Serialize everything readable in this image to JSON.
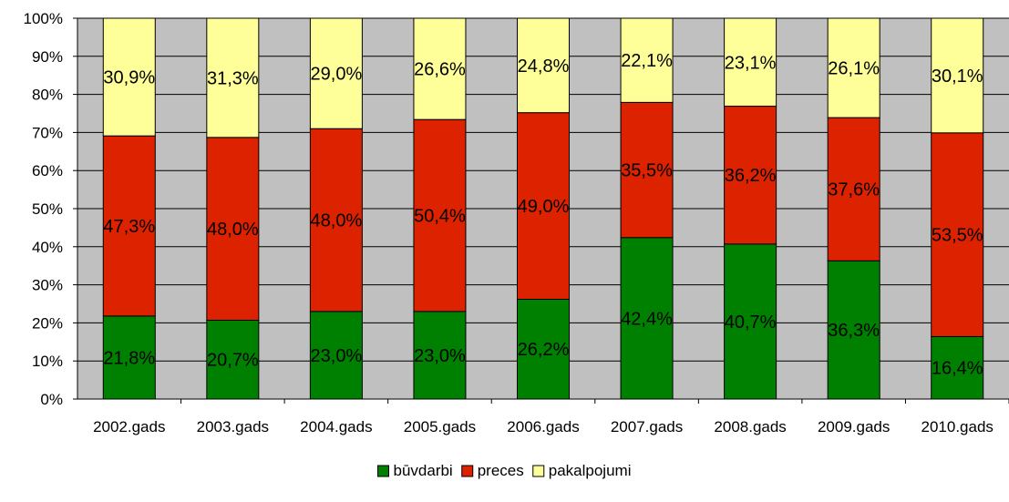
{
  "chart_data": {
    "type": "bar",
    "stacked": true,
    "categories": [
      "2002.gads",
      "2003.gads",
      "2004.gads",
      "2005.gads",
      "2006.gads",
      "2007.gads",
      "2008.gads",
      "2009.gads",
      "2010.gads"
    ],
    "series": [
      {
        "name": "būvdarbi",
        "color": "#008000",
        "values": [
          21.8,
          20.7,
          23.0,
          23.0,
          26.2,
          42.4,
          40.7,
          36.3,
          16.4
        ],
        "labels": [
          "21,8%",
          "20,7%",
          "23,0%",
          "23,0%",
          "26,2%",
          "42,4%",
          "40,7%",
          "36,3%",
          "16,4%"
        ]
      },
      {
        "name": "preces",
        "color": "#dd2200",
        "values": [
          47.3,
          48.0,
          48.0,
          50.4,
          49.0,
          35.5,
          36.2,
          37.6,
          53.5
        ],
        "labels": [
          "47,3%",
          "48,0%",
          "48,0%",
          "50,4%",
          "49,0%",
          "35,5%",
          "36,2%",
          "37,6%",
          "53,5%"
        ]
      },
      {
        "name": "pakalpojumi",
        "color": "#ffff99",
        "values": [
          30.9,
          31.3,
          29.0,
          26.6,
          24.8,
          22.1,
          23.1,
          26.1,
          30.1
        ],
        "labels": [
          "30,9%",
          "31,3%",
          "29,0%",
          "26,6%",
          "24,8%",
          "22,1%",
          "23,1%",
          "26,1%",
          "30,1%"
        ]
      }
    ],
    "y_ticks": [
      "0%",
      "10%",
      "20%",
      "30%",
      "40%",
      "50%",
      "60%",
      "70%",
      "80%",
      "90%",
      "100%"
    ],
    "ylim": [
      0,
      100
    ],
    "grid": true,
    "plot_background": "#c0c0c0",
    "legend_position": "bottom"
  }
}
